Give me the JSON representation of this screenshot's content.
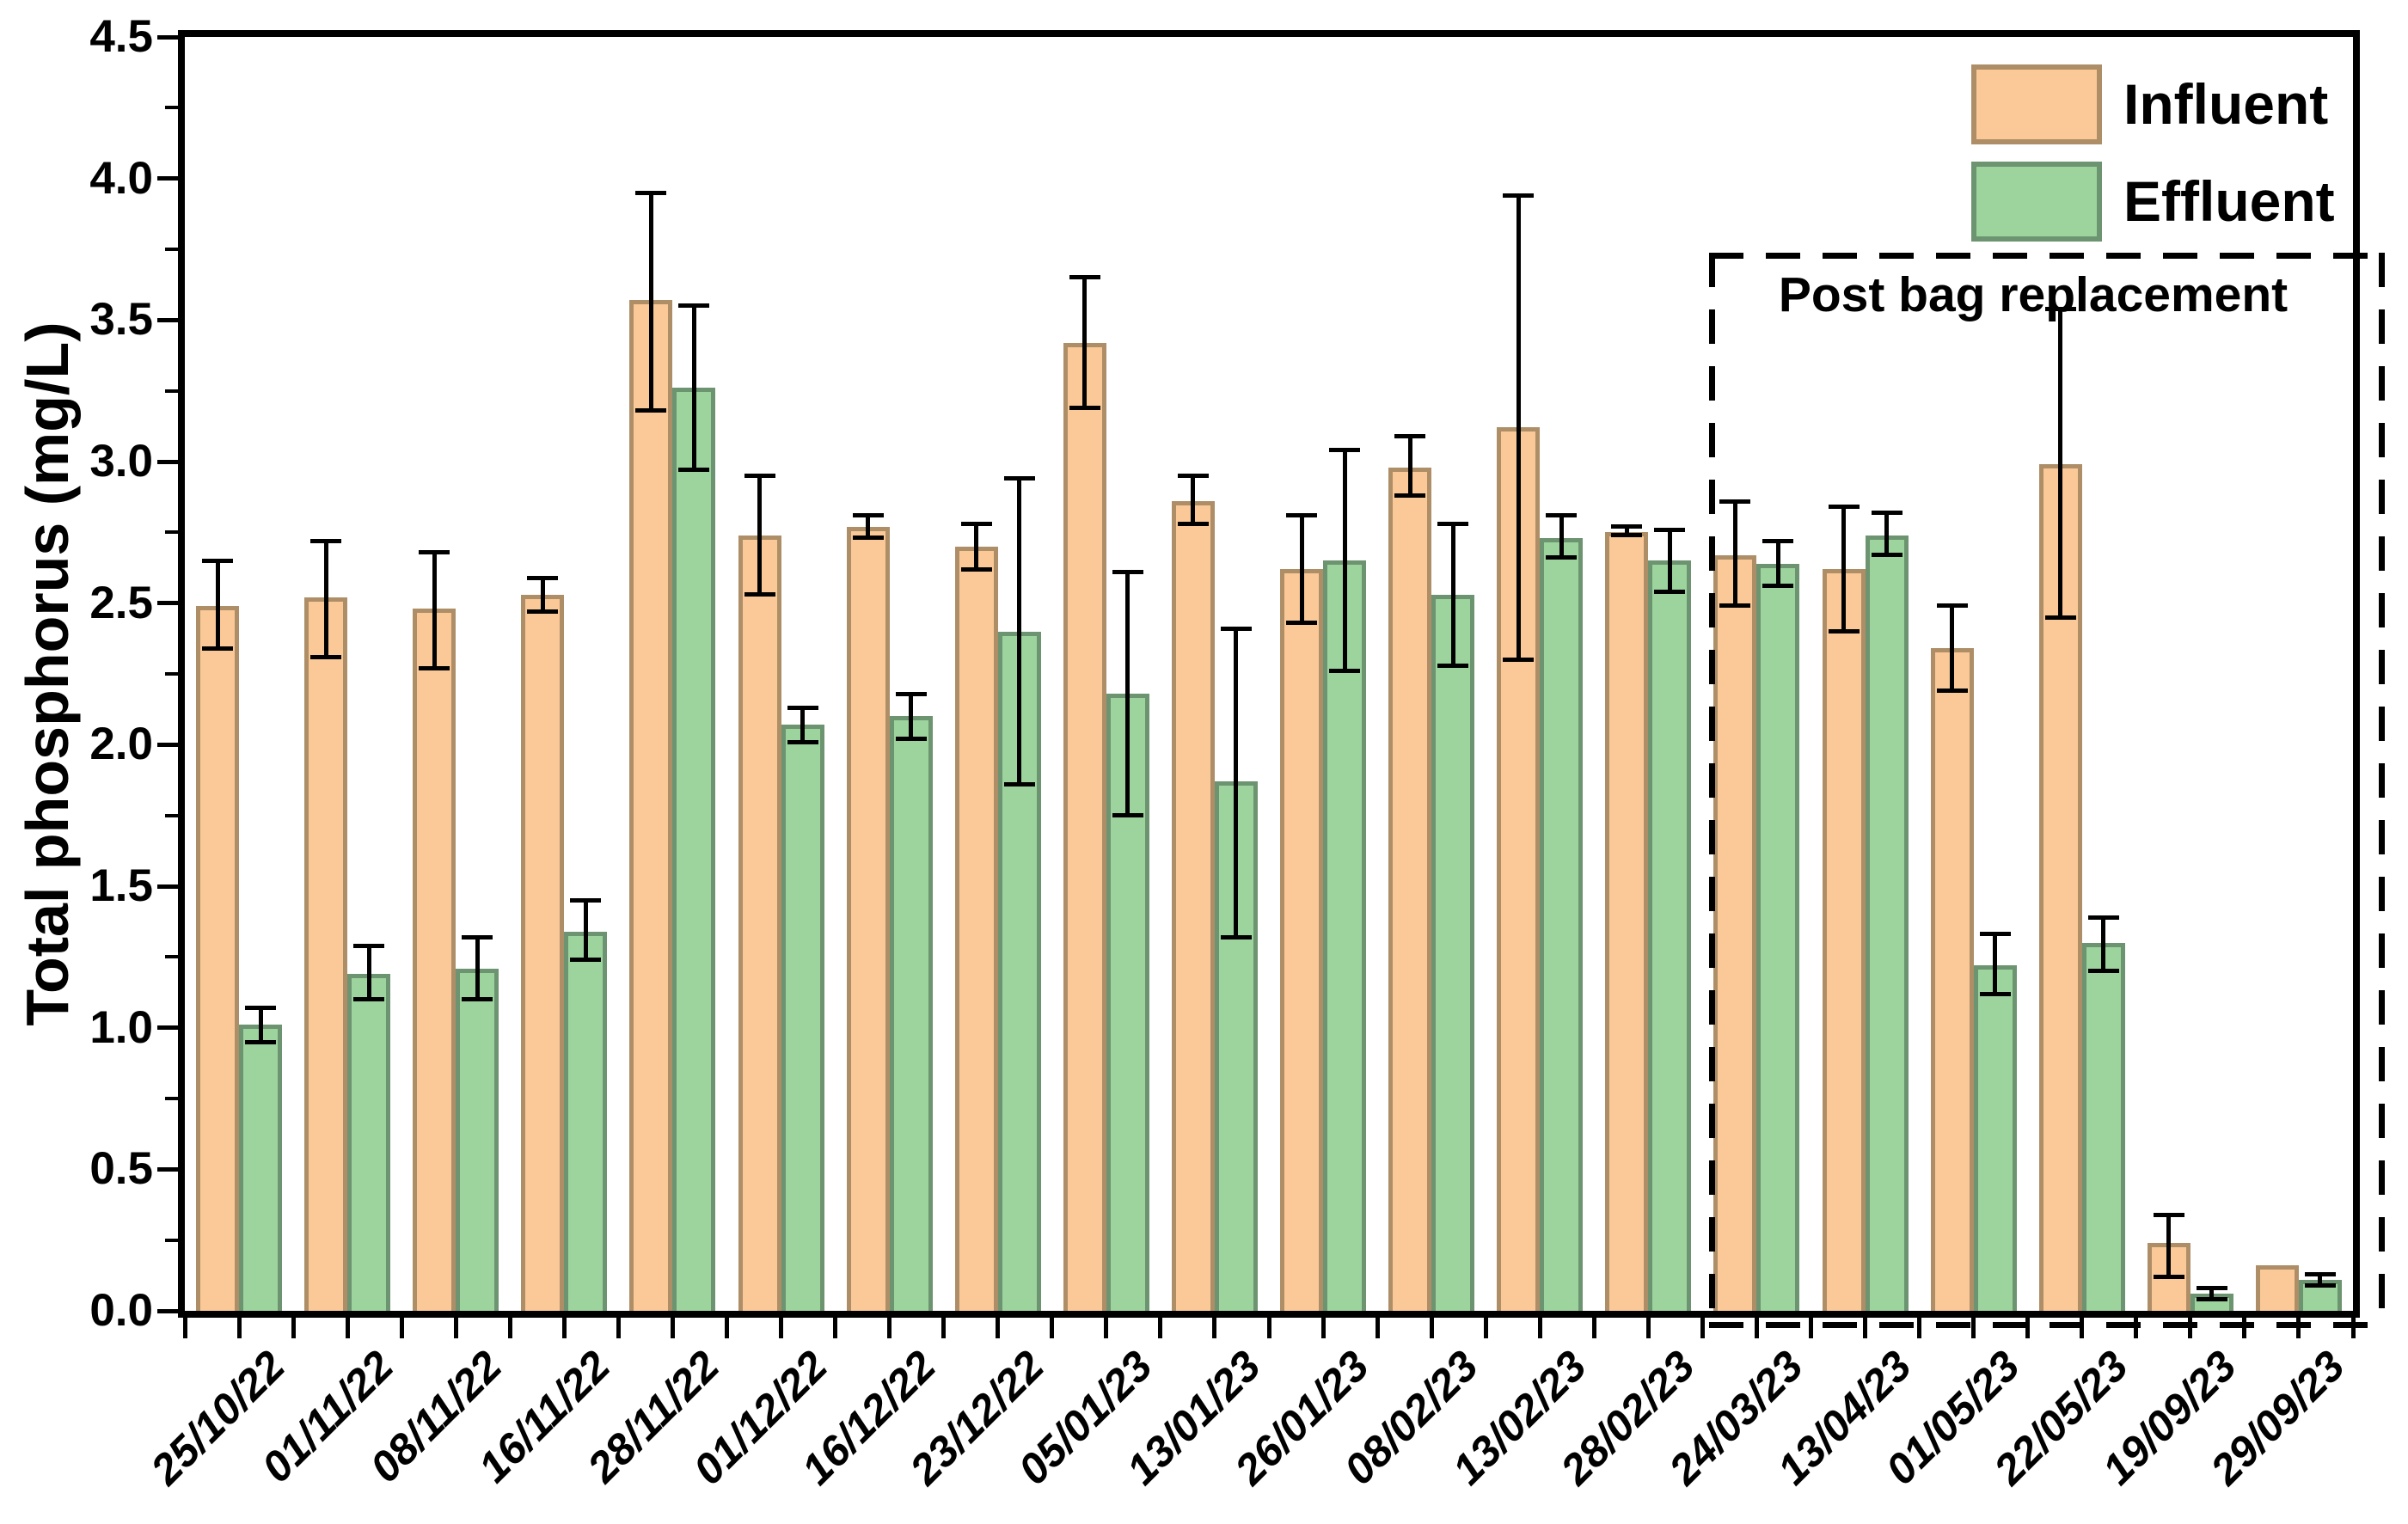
{
  "y_axis": {
    "title": "Total phosphorus (mg/L)",
    "tick_labels": [
      "0.0",
      "0.5",
      "1.0",
      "1.5",
      "2.0",
      "2.5",
      "3.0",
      "3.5",
      "4.0",
      "4.5"
    ]
  },
  "legend": [
    {
      "label": "Influent",
      "fill": "#FBC998",
      "edge": "#AE8E67"
    },
    {
      "label": "Effluent",
      "fill": "#9DD49E",
      "edge": "#6D9470"
    }
  ],
  "annotation": {
    "label": "Post bag replacement",
    "start_category": "24/03/23"
  },
  "colors": {
    "influent_fill": "#FBC998",
    "influent_edge": "#AE8E67",
    "effluent_fill": "#9DD49E",
    "effluent_edge": "#6D9470",
    "error_bar": "#000000"
  },
  "chart_data": {
    "type": "bar",
    "title": "",
    "xlabel": "",
    "ylabel": "Total phosphorus (mg/L)",
    "ylim": [
      0,
      4.5
    ],
    "y_major_step": 0.5,
    "y_minor_step": 0.25,
    "grid": false,
    "legend_position": "top-right-inside",
    "categories": [
      "25/10/22",
      "01/11/22",
      "08/11/22",
      "16/11/22",
      "28/11/22",
      "01/12/22",
      "16/12/22",
      "23/12/22",
      "05/01/23",
      "13/01/23",
      "26/01/23",
      "08/02/23",
      "13/02/23",
      "28/02/23",
      "24/03/23",
      "13/04/23",
      "01/05/23",
      "22/05/23",
      "19/09/23",
      "29/09/23"
    ],
    "series": [
      {
        "name": "Influent",
        "values": [
          2.49,
          2.52,
          2.48,
          2.53,
          3.57,
          2.74,
          2.77,
          2.7,
          3.42,
          2.86,
          2.62,
          2.98,
          3.12,
          2.75,
          2.67,
          2.62,
          2.34,
          2.99,
          0.24,
          0.16
        ],
        "err_low": [
          2.34,
          2.31,
          2.27,
          2.47,
          3.18,
          2.53,
          2.73,
          2.62,
          3.19,
          2.78,
          2.43,
          2.88,
          2.3,
          2.74,
          2.49,
          2.4,
          2.19,
          2.45,
          0.12,
          0.16
        ],
        "err_high": [
          2.65,
          2.72,
          2.68,
          2.59,
          3.95,
          2.95,
          2.81,
          2.78,
          3.65,
          2.95,
          2.81,
          3.09,
          3.94,
          2.77,
          2.86,
          2.84,
          2.49,
          3.54,
          0.34,
          0.16
        ]
      },
      {
        "name": "Effluent",
        "values": [
          1.01,
          1.19,
          1.21,
          1.34,
          3.26,
          2.07,
          2.1,
          2.4,
          2.18,
          1.87,
          2.65,
          2.53,
          2.73,
          2.65,
          2.64,
          2.74,
          1.22,
          1.3,
          0.06,
          0.11
        ],
        "err_low": [
          0.95,
          1.1,
          1.1,
          1.24,
          2.97,
          2.01,
          2.02,
          1.86,
          1.75,
          1.32,
          2.26,
          2.28,
          2.66,
          2.54,
          2.56,
          2.67,
          1.12,
          1.2,
          0.04,
          0.09
        ],
        "err_high": [
          1.07,
          1.29,
          1.32,
          1.45,
          3.55,
          2.13,
          2.18,
          2.94,
          2.61,
          2.41,
          3.04,
          2.78,
          2.81,
          2.76,
          2.72,
          2.82,
          1.33,
          1.39,
          0.08,
          0.13
        ]
      }
    ],
    "annotation_box": {
      "label": "Post bag replacement",
      "covers_categories": [
        "24/03/23",
        "13/04/23",
        "01/05/23",
        "22/05/23",
        "19/09/23",
        "29/09/23"
      ]
    }
  }
}
